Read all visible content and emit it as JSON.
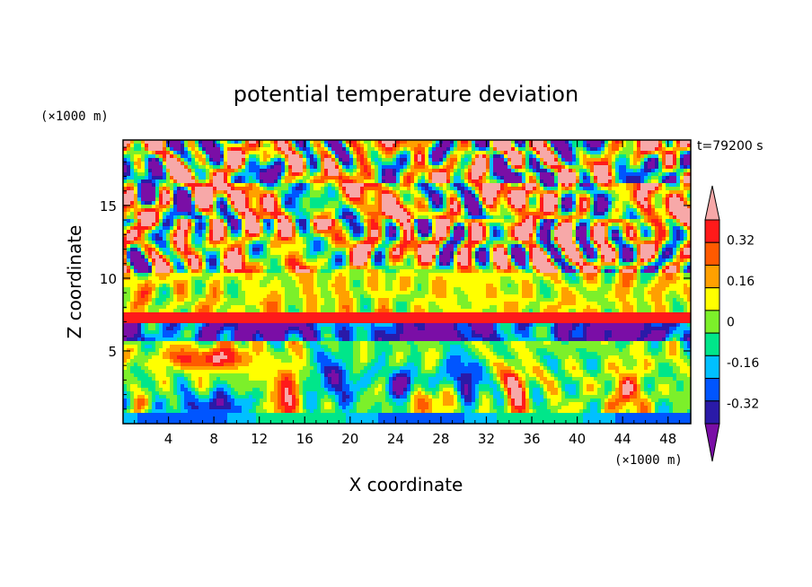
{
  "chart_data": {
    "type": "heatmap",
    "title": "potential temperature deviation",
    "xlabel": "X coordinate",
    "ylabel": "Z coordinate",
    "x_unit": "(×1000 m)",
    "y_unit": "(×1000 m)",
    "time_label": "t=79200 s",
    "xlim": [
      0,
      50
    ],
    "ylim": [
      0,
      19.5
    ],
    "x_ticks": [
      4,
      8,
      12,
      16,
      20,
      24,
      28,
      32,
      36,
      40,
      44,
      48
    ],
    "y_ticks": [
      5,
      10,
      15
    ],
    "colorbar": {
      "levels": [
        -0.4,
        -0.32,
        -0.24,
        -0.16,
        -0.08,
        0,
        0.08,
        0.16,
        0.24,
        0.32,
        0.4
      ],
      "tick_labels": [
        "0.32",
        "0.16",
        "0",
        "-0.16",
        "-0.32"
      ],
      "tick_values": [
        0.32,
        0.16,
        0,
        -0.16,
        -0.32
      ],
      "colors": [
        "#7a0ea6",
        "#2a1aa8",
        "#0055ff",
        "#00c0ff",
        "#00e68a",
        "#7cf02a",
        "#ffff00",
        "#ffa000",
        "#ff5a00",
        "#ff1a1a",
        "#f7a8a8"
      ],
      "extend": "both"
    }
  }
}
